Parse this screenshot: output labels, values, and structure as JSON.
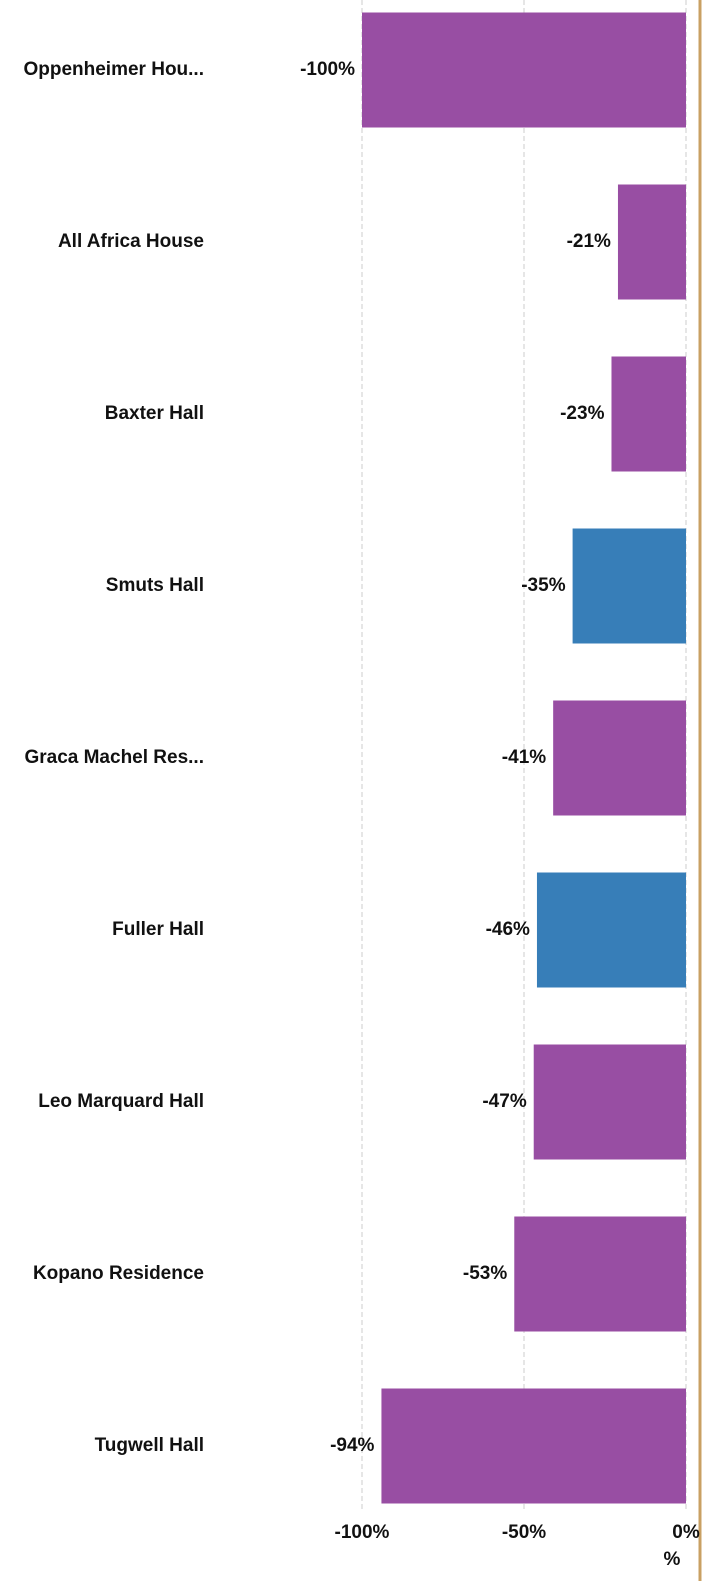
{
  "chart_data": {
    "type": "hbar",
    "categories": [
      "Oppenheimer Hou...",
      "All Africa House",
      "Baxter Hall",
      "Smuts Hall",
      "Graca Machel Res...",
      "Fuller Hall",
      "Leo Marquard Hall",
      "Kopano Residence",
      "Tugwell Hall"
    ],
    "values": [
      -100,
      -21,
      -23,
      -35,
      -41,
      -46,
      -47,
      -53,
      -94
    ],
    "value_labels": [
      "-100%",
      "-21%",
      "-23%",
      "-35%",
      "-41%",
      "-46%",
      "-47%",
      "-53%",
      "-94%"
    ],
    "colors": [
      "#984ea3",
      "#984ea3",
      "#984ea3",
      "#377eb8",
      "#984ea3",
      "#377eb8",
      "#984ea3",
      "#984ea3",
      "#984ea3"
    ],
    "xlim": [
      -100,
      0
    ],
    "xticks": [
      {
        "value": -100,
        "label": "-100%"
      },
      {
        "value": -50,
        "label": "-50%"
      },
      {
        "value": 0,
        "label": "0%"
      }
    ],
    "x_label": "%",
    "grid": true
  }
}
